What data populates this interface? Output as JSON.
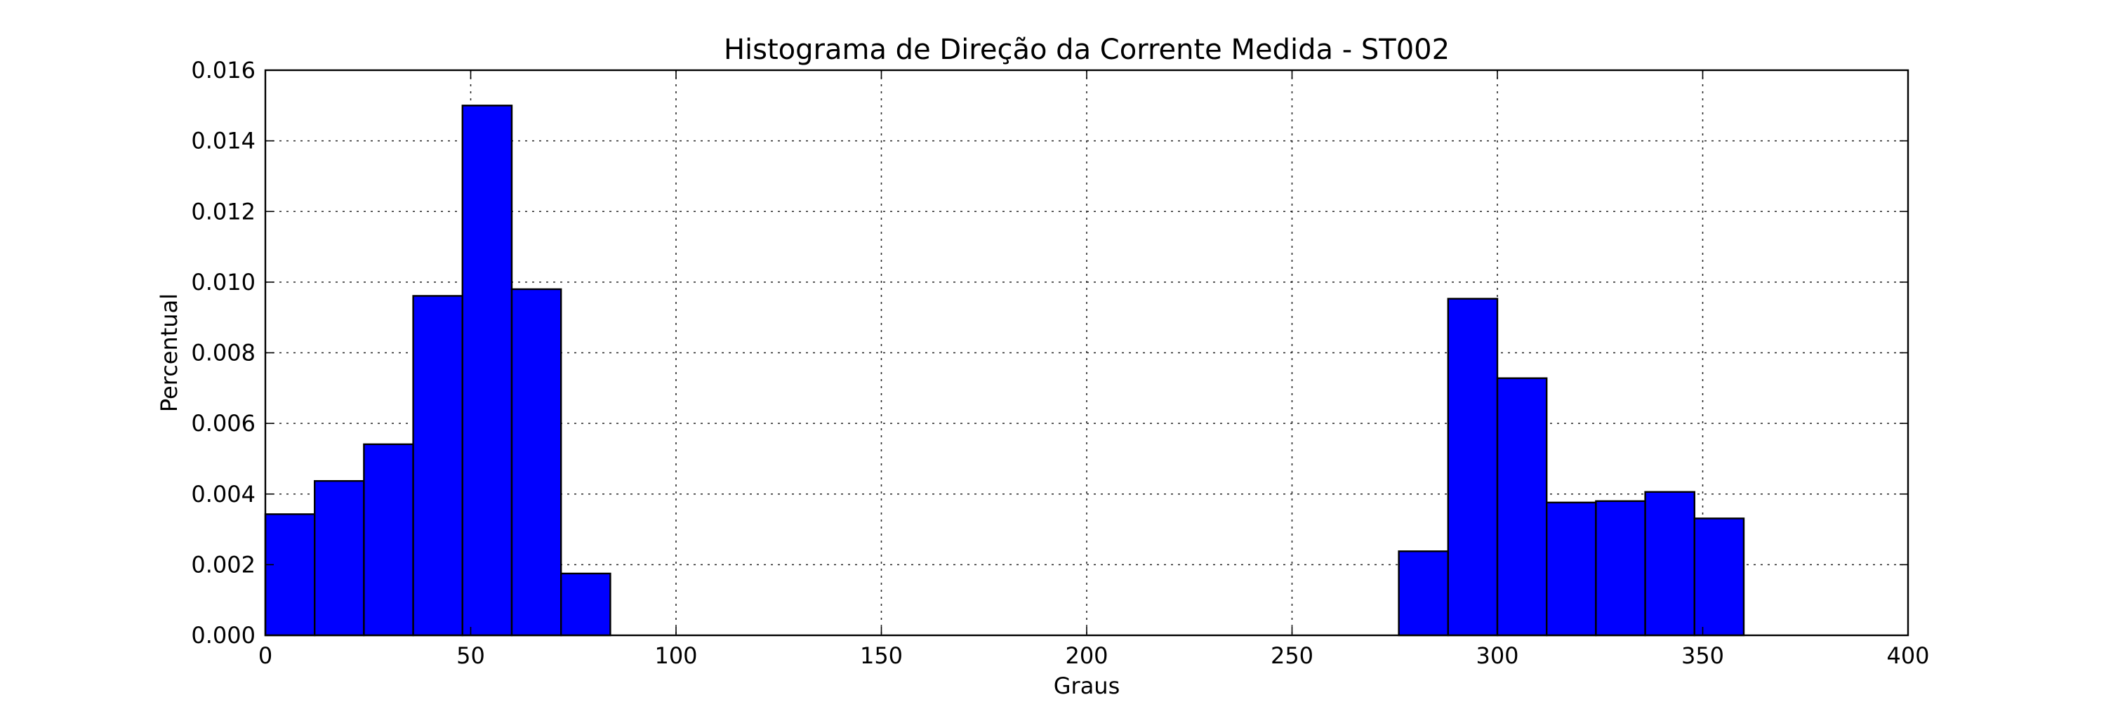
{
  "chart_data": {
    "type": "bar",
    "title": "Histograma de Direção da Corrente Medida - ST002",
    "xlabel": "Graus",
    "ylabel": "Percentual",
    "xlim": [
      0,
      400
    ],
    "ylim": [
      0,
      0.016
    ],
    "x_ticks": [
      "0",
      "50",
      "100",
      "150",
      "200",
      "250",
      "300",
      "350",
      "400"
    ],
    "y_ticks": [
      "0.000",
      "0.002",
      "0.004",
      "0.006",
      "0.008",
      "0.010",
      "0.012",
      "0.014",
      "0.016"
    ],
    "grid": true,
    "bar_color": "#0000ff",
    "bins": [
      {
        "x0": 0,
        "x1": 12,
        "value": 0.00343
      },
      {
        "x0": 12,
        "x1": 24,
        "value": 0.00437
      },
      {
        "x0": 24,
        "x1": 36,
        "value": 0.00541
      },
      {
        "x0": 36,
        "x1": 48,
        "value": 0.00961
      },
      {
        "x0": 48,
        "x1": 60,
        "value": 0.015
      },
      {
        "x0": 60,
        "x1": 72,
        "value": 0.0098
      },
      {
        "x0": 72,
        "x1": 84,
        "value": 0.00175
      },
      {
        "x0": 276,
        "x1": 288,
        "value": 0.00238
      },
      {
        "x0": 288,
        "x1": 300,
        "value": 0.00953
      },
      {
        "x0": 300,
        "x1": 312,
        "value": 0.00728
      },
      {
        "x0": 312,
        "x1": 324,
        "value": 0.00376
      },
      {
        "x0": 324,
        "x1": 336,
        "value": 0.0038
      },
      {
        "x0": 336,
        "x1": 348,
        "value": 0.00406
      },
      {
        "x0": 348,
        "x1": 360,
        "value": 0.00331
      }
    ]
  }
}
